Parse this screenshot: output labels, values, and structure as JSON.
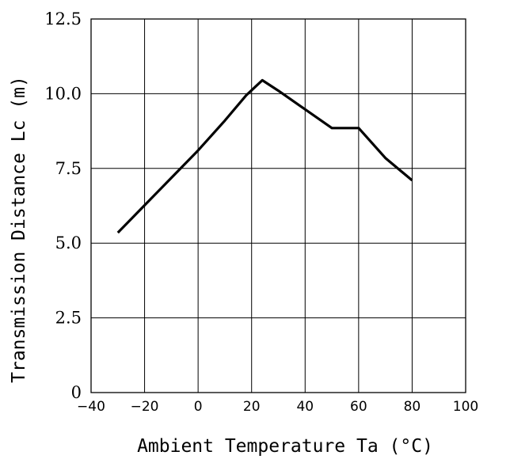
{
  "chart_data": {
    "type": "line",
    "xlabel": "Ambient Temperature Ta (°C)",
    "ylabel": "Transmission Distance Lc (m)",
    "xlim": [
      -40,
      100
    ],
    "ylim": [
      0,
      12.5
    ],
    "x_ticks": [
      "−40",
      "−20",
      "0",
      "20",
      "40",
      "60",
      "80",
      "100"
    ],
    "y_ticks": [
      "0",
      "2.5",
      "5.0",
      "7.5",
      "10.0",
      "12.5"
    ],
    "grid": true,
    "series": [
      {
        "x": [
          -30,
          0,
          10,
          18,
          24,
          30,
          50,
          60,
          70,
          80
        ],
        "y": [
          5.35,
          8.1,
          9.1,
          9.95,
          10.45,
          10.1,
          8.85,
          8.85,
          7.85,
          7.1
        ]
      }
    ]
  }
}
